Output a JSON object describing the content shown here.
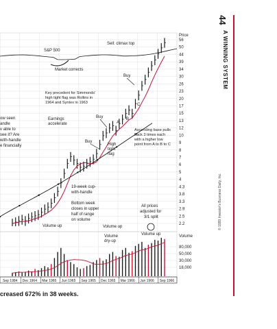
{
  "header": {
    "page_number": "44",
    "section_title": "A WINNING SYSTEM"
  },
  "caption": "creased 672% in 38 weeks.",
  "copyright": "© 1999 Investor's Business Daily, Inc.",
  "colors": {
    "accent": "#c8102e",
    "ink": "#1a1a1a",
    "grid": "#d9d9d9"
  },
  "chart_data": {
    "type": "stock-chart",
    "price_axis_title": "Price",
    "price_ticks": [
      "56",
      "50",
      "44",
      "39",
      "34",
      "30",
      "26",
      "23",
      "20",
      "17",
      "15",
      "13",
      "12",
      "10",
      "9",
      "8",
      "7",
      "6",
      "5",
      "4",
      "4.3",
      "3.8",
      "3.3",
      "2.9",
      "2.5",
      "2.2"
    ],
    "volume_axis_title": "Volume",
    "volume_ticks": [
      "80,000",
      "50,000",
      "30,000",
      "18,000"
    ],
    "x_ticks": [
      "Sep 1984",
      "Dec 1964",
      "Mar 1965",
      "Jun 1965",
      "Sep 1965",
      "Dec 1965",
      "Mar 1966",
      "Jun 1966",
      "Sep 1966"
    ],
    "sp500_label": "S&P 500",
    "annotations": {
      "sell_climax": "Sell: climax top",
      "market_corrects": "Market corrects",
      "buy_top": "Buy",
      "key_precedent": [
        "Key precedent for Simmonds'",
        "high tight flag was Rollins in",
        "1964 and Syntex in 1963"
      ],
      "earnings_accelerate": [
        "Earnings",
        "accelerate"
      ],
      "buy_mid": "Buy",
      "buy_low": "Buy",
      "high_tight_flag": [
        "High",
        "tight",
        "flag"
      ],
      "ascending_base": [
        "Ascending base pulls",
        "back 3 times each",
        "with a higher low",
        "point from A to B to C"
      ],
      "point_a": "A",
      "point_b": "B",
      "point_c": "C",
      "left_cut": [
        "ow seen",
        "andle",
        "v able to",
        "see it? Are",
        "with-handle",
        "e financially"
      ],
      "cup_handle": [
        "19-week cup-",
        "with-handle"
      ],
      "bottom_week": [
        "Bottom week",
        "closes in upper",
        "half of range",
        "on volume"
      ],
      "all_prices": [
        "All prices",
        "adjusted for",
        "3/1 split"
      ],
      "volume_up_1": "Volume up",
      "volume_up_2": "Volume up",
      "volume_up_3": "Volume up",
      "volume_dry_up": [
        "Volume",
        "dry-up"
      ]
    },
    "weekly_close": [
      2.0,
      2.05,
      2.1,
      2.15,
      2.1,
      2.2,
      2.25,
      2.3,
      2.35,
      2.45,
      2.6,
      2.7,
      2.9,
      3.2,
      3.6,
      4.2,
      5.0,
      6.0,
      6.8,
      6.4,
      6.0,
      5.6,
      5.7,
      6.0,
      6.2,
      6.5,
      7.2,
      8.5,
      10.0,
      10.5,
      11.5,
      12.0,
      11.0,
      12.5,
      13.5,
      15.0,
      16.0,
      15.0,
      18.0,
      21.0,
      25.0,
      28.0,
      32.0,
      36.0,
      40.0,
      45.0,
      50.0,
      55.0
    ],
    "weekly_volume_k": [
      8,
      10,
      12,
      9,
      11,
      14,
      12,
      18,
      15,
      20,
      25,
      22,
      30,
      45,
      60,
      70,
      55,
      40,
      35,
      30,
      22,
      18,
      20,
      25,
      28,
      35,
      40,
      45,
      38,
      42,
      55,
      60,
      50,
      48,
      65,
      70,
      58,
      62,
      75,
      80,
      85,
      70,
      78,
      82,
      90,
      88,
      95,
      92
    ]
  }
}
